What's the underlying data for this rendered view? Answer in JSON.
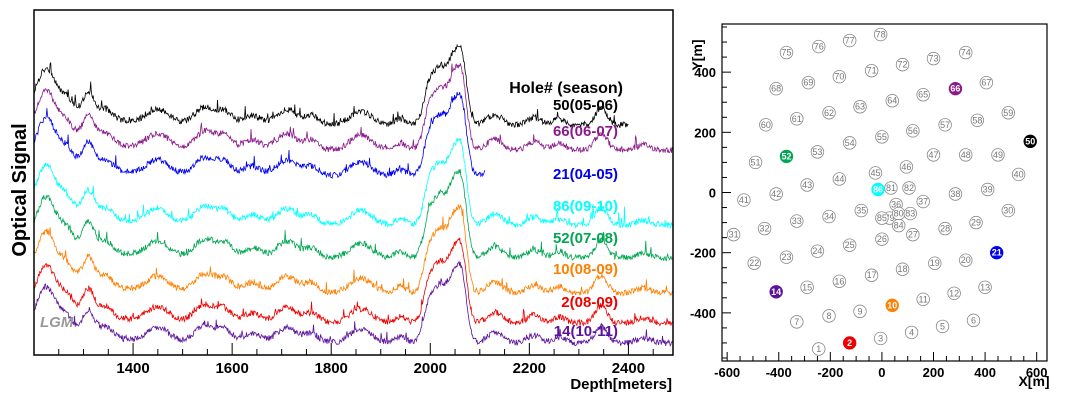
{
  "chart_data": [
    {
      "type": "line",
      "xlabel": "Depth[meters]",
      "ylabel": "Optical Signal",
      "xlim": [
        1200,
        2490
      ],
      "xticks": [
        "1400",
        "1600",
        "1800",
        "2000",
        "2200",
        "2400"
      ],
      "annotation": "LGM",
      "legend_title": "Hole# (season)",
      "series": [
        {
          "name": "50",
          "season": "(05-06)",
          "color": "#000000",
          "xmax": 2400
        },
        {
          "name": "66",
          "season": "(06-07)",
          "color": "#8b1a89",
          "xmax": 2490
        },
        {
          "name": "21",
          "season": "(04-05)",
          "color": "#0000ee",
          "xmax": 2110
        },
        {
          "name": "86",
          "season": "(09-10)",
          "color": "#00ffff",
          "xmax": 2490
        },
        {
          "name": "52",
          "season": "(07-08)",
          "color": "#00a651",
          "xmax": 2490
        },
        {
          "name": "10",
          "season": "(08-09)",
          "color": "#ff7f00",
          "xmax": 2490
        },
        {
          "name": "2",
          "season": "(08-09)",
          "color": "#ee0000",
          "xmax": 2490
        },
        {
          "name": "14",
          "season": "(10-11)",
          "color": "#5b139b",
          "xmax": 2490
        }
      ]
    },
    {
      "type": "scatter",
      "xlabel": "X[m]",
      "ylabel": "Y[m]",
      "xlim": [
        -620,
        640
      ],
      "ylim": [
        -560,
        560
      ],
      "xticks": [
        "-600",
        "-400",
        "-200",
        "0",
        "200",
        "400",
        "600"
      ],
      "yticks": [
        "-400",
        "-200",
        "0",
        "200",
        "400"
      ],
      "holes": [
        {
          "id": "1",
          "x": -245,
          "y": -520
        },
        {
          "id": "2",
          "x": -125,
          "y": -500,
          "color": "#ee0000"
        },
        {
          "id": "3",
          "x": -5,
          "y": -485
        },
        {
          "id": "4",
          "x": 115,
          "y": -465
        },
        {
          "id": "5",
          "x": 235,
          "y": -445
        },
        {
          "id": "6",
          "x": 355,
          "y": -425
        },
        {
          "id": "7",
          "x": -330,
          "y": -430
        },
        {
          "id": "8",
          "x": -205,
          "y": -410
        },
        {
          "id": "9",
          "x": -85,
          "y": -395
        },
        {
          "id": "10",
          "x": 40,
          "y": -375,
          "color": "#ff7f00"
        },
        {
          "id": "11",
          "x": 160,
          "y": -355
        },
        {
          "id": "12",
          "x": 280,
          "y": -335
        },
        {
          "id": "13",
          "x": 400,
          "y": -315
        },
        {
          "id": "14",
          "x": -410,
          "y": -330,
          "color": "#5b139b"
        },
        {
          "id": "15",
          "x": -290,
          "y": -315
        },
        {
          "id": "16",
          "x": -165,
          "y": -295
        },
        {
          "id": "17",
          "x": -40,
          "y": -275
        },
        {
          "id": "18",
          "x": 80,
          "y": -255
        },
        {
          "id": "19",
          "x": 205,
          "y": -235
        },
        {
          "id": "20",
          "x": 325,
          "y": -225
        },
        {
          "id": "21",
          "x": 445,
          "y": -200,
          "color": "#0000ee"
        },
        {
          "id": "22",
          "x": -495,
          "y": -235
        },
        {
          "id": "23",
          "x": -370,
          "y": -215
        },
        {
          "id": "24",
          "x": -250,
          "y": -195
        },
        {
          "id": "25",
          "x": -125,
          "y": -175
        },
        {
          "id": "26",
          "x": 0,
          "y": -155
        },
        {
          "id": "27",
          "x": 120,
          "y": -140
        },
        {
          "id": "28",
          "x": 245,
          "y": -120
        },
        {
          "id": "29",
          "x": 365,
          "y": -100
        },
        {
          "id": "30",
          "x": 490,
          "y": -60
        },
        {
          "id": "31",
          "x": -575,
          "y": -140
        },
        {
          "id": "32",
          "x": -455,
          "y": -120
        },
        {
          "id": "33",
          "x": -330,
          "y": -95
        },
        {
          "id": "34",
          "x": -205,
          "y": -80
        },
        {
          "id": "35",
          "x": -80,
          "y": -60
        },
        {
          "id": "36",
          "x": 55,
          "y": -40
        },
        {
          "id": "37",
          "x": 160,
          "y": -30
        },
        {
          "id": "38",
          "x": 285,
          "y": -5
        },
        {
          "id": "39",
          "x": 410,
          "y": 10
        },
        {
          "id": "40",
          "x": 530,
          "y": 60
        },
        {
          "id": "41",
          "x": -535,
          "y": -25
        },
        {
          "id": "42",
          "x": -410,
          "y": -5
        },
        {
          "id": "43",
          "x": -290,
          "y": 25
        },
        {
          "id": "44",
          "x": -165,
          "y": 45
        },
        {
          "id": "45",
          "x": -25,
          "y": 65
        },
        {
          "id": "46",
          "x": 95,
          "y": 85
        },
        {
          "id": "47",
          "x": 200,
          "y": 125
        },
        {
          "id": "48",
          "x": 325,
          "y": 125
        },
        {
          "id": "49",
          "x": 450,
          "y": 125
        },
        {
          "id": "50",
          "x": 575,
          "y": 170,
          "color": "#000000"
        },
        {
          "id": "51",
          "x": -490,
          "y": 100
        },
        {
          "id": "52",
          "x": -370,
          "y": 120,
          "color": "#00a651"
        },
        {
          "id": "53",
          "x": -250,
          "y": 135
        },
        {
          "id": "54",
          "x": -125,
          "y": 165
        },
        {
          "id": "55",
          "x": 0,
          "y": 185
        },
        {
          "id": "56",
          "x": 120,
          "y": 205
        },
        {
          "id": "57",
          "x": 245,
          "y": 225
        },
        {
          "id": "58",
          "x": 370,
          "y": 240
        },
        {
          "id": "59",
          "x": 490,
          "y": 265
        },
        {
          "id": "60",
          "x": -450,
          "y": 225
        },
        {
          "id": "61",
          "x": -330,
          "y": 245
        },
        {
          "id": "62",
          "x": -205,
          "y": 265
        },
        {
          "id": "63",
          "x": -85,
          "y": 285
        },
        {
          "id": "64",
          "x": 40,
          "y": 305
        },
        {
          "id": "65",
          "x": 160,
          "y": 325
        },
        {
          "id": "66",
          "x": 285,
          "y": 345,
          "color": "#8b1a89"
        },
        {
          "id": "67",
          "x": 405,
          "y": 365
        },
        {
          "id": "68",
          "x": -410,
          "y": 345
        },
        {
          "id": "69",
          "x": -285,
          "y": 365
        },
        {
          "id": "70",
          "x": -165,
          "y": 385
        },
        {
          "id": "71",
          "x": -40,
          "y": 405
        },
        {
          "id": "72",
          "x": 80,
          "y": 425
        },
        {
          "id": "73",
          "x": 200,
          "y": 445
        },
        {
          "id": "74",
          "x": 325,
          "y": 465
        },
        {
          "id": "75",
          "x": -370,
          "y": 465
        },
        {
          "id": "76",
          "x": -245,
          "y": 485
        },
        {
          "id": "77",
          "x": -125,
          "y": 505
        },
        {
          "id": "78",
          "x": -5,
          "y": 525
        },
        {
          "id": "79",
          "x": 30,
          "y": -85
        },
        {
          "id": "80",
          "x": 65,
          "y": -70
        },
        {
          "id": "81",
          "x": 35,
          "y": 15
        },
        {
          "id": "82",
          "x": 105,
          "y": 15
        },
        {
          "id": "83",
          "x": 110,
          "y": -70
        },
        {
          "id": "84",
          "x": 65,
          "y": -110
        },
        {
          "id": "85",
          "x": 0,
          "y": -85
        },
        {
          "id": "86",
          "x": -15,
          "y": 10,
          "color": "#00ffff"
        }
      ]
    }
  ]
}
